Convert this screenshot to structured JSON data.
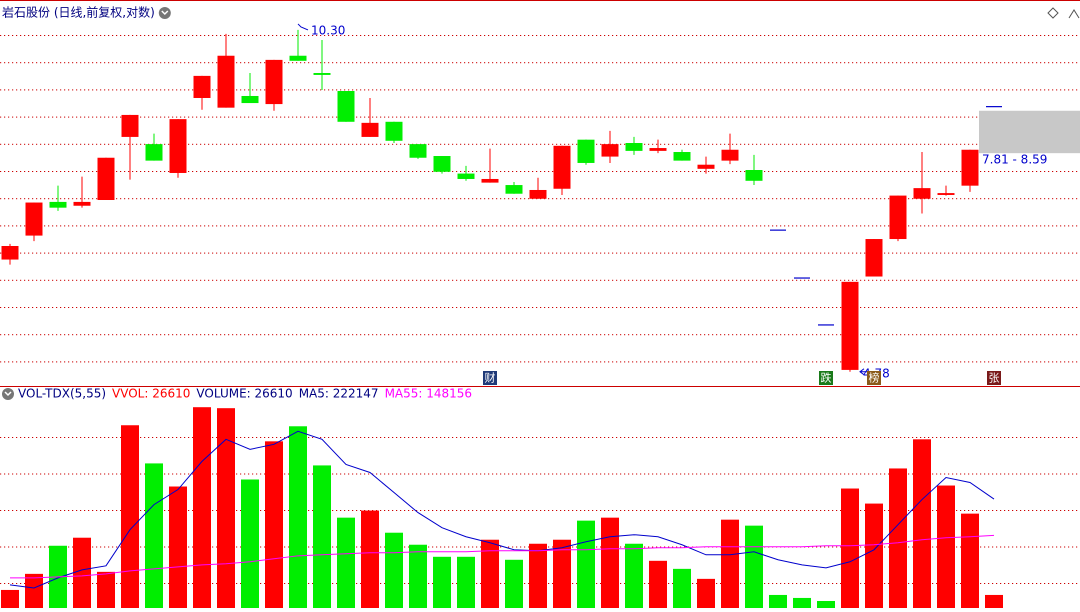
{
  "chart_data": [
    {
      "type": "candlestick",
      "title": "岩石股份 (日线,前复权,对数)",
      "scale": "log",
      "ylim": [
        4.64,
        10.82
      ],
      "up_color": "#ff0000",
      "down_color": "#00ee00",
      "flat_color": "#0000cc",
      "open": [
        6.15,
        6.49,
        7.0,
        6.94,
        7.03,
        8.1,
        7.97,
        7.47,
        8.84,
        8.65,
        8.88,
        8.72,
        9.72,
        9.35,
        8.98,
        8.1,
        8.38,
        7.97,
        7.76,
        7.46,
        7.31,
        7.27,
        7.05,
        7.21,
        8.05,
        7.75,
        7.99,
        7.85,
        7.83,
        7.54,
        7.68,
        7.52,
        6.57,
        5.9,
        5.31,
        4.8,
        5.92,
        6.44,
        7.05,
        7.11,
        7.26,
        8.67
      ],
      "high": [
        6.37,
        6.99,
        7.26,
        7.41,
        7.73,
        8.51,
        8.16,
        8.43,
        9.29,
        10.21,
        9.35,
        9.63,
        10.3,
        10.07,
        8.98,
        8.84,
        8.38,
        7.97,
        7.76,
        7.59,
        7.89,
        7.32,
        7.39,
        7.94,
        8.05,
        8.21,
        8.1,
        8.05,
        7.87,
        7.75,
        8.16,
        7.78,
        6.57,
        5.9,
        5.31,
        5.85,
        6.44,
        7.1,
        7.83,
        7.26,
        7.87,
        8.67
      ],
      "low": [
        6.08,
        6.41,
        6.86,
        6.91,
        7.03,
        7.36,
        7.68,
        7.39,
        8.61,
        8.65,
        8.74,
        8.59,
        9.61,
        9.0,
        8.38,
        8.1,
        7.99,
        7.71,
        7.46,
        7.34,
        7.31,
        7.13,
        7.05,
        7.11,
        7.61,
        7.64,
        7.78,
        7.81,
        7.68,
        7.46,
        7.62,
        7.27,
        6.57,
        5.9,
        5.31,
        4.78,
        5.92,
        6.41,
        6.82,
        7.1,
        7.16,
        8.67
      ],
      "close": [
        6.34,
        6.99,
        6.91,
        7.0,
        7.73,
        8.51,
        7.68,
        8.43,
        9.29,
        9.72,
        8.74,
        9.63,
        9.61,
        9.31,
        8.38,
        8.36,
        8.03,
        7.73,
        7.49,
        7.37,
        7.37,
        7.13,
        7.19,
        7.94,
        7.64,
        7.97,
        7.85,
        7.9,
        7.68,
        7.61,
        7.87,
        7.34,
        6.57,
        5.9,
        5.31,
        5.85,
        6.44,
        7.1,
        7.22,
        7.14,
        7.87,
        8.67
      ],
      "high_label": "10.30",
      "low_label": "4.78",
      "range_box": {
        "label": "7.81 - 8.59",
        "low": 7.81,
        "high": 8.59,
        "color": "#c8c8c8"
      },
      "markers": [
        null,
        null,
        null,
        null,
        null,
        null,
        null,
        null,
        null,
        null,
        null,
        null,
        null,
        null,
        null,
        null,
        null,
        null,
        null,
        null,
        {
          "text": "财",
          "color": "#203a78"
        },
        null,
        null,
        null,
        null,
        null,
        null,
        null,
        null,
        null,
        null,
        null,
        null,
        null,
        {
          "text": "跌",
          "color": "#1a7a1a"
        },
        null,
        {
          "text": "榜",
          "color": "#8a5a1a"
        },
        null,
        null,
        null,
        null,
        {
          "text": "张",
          "color": "#7a1a1a"
        }
      ]
    },
    {
      "type": "bar",
      "title": "VOL-TDX(5,55)",
      "ylim": [
        0,
        420000
      ],
      "legend": [
        {
          "text": "VVOL: 26610",
          "color": "#ff0000"
        },
        {
          "text": "VOLUME: 26610",
          "color": "#000080"
        },
        {
          "text": "MA5: 222147",
          "color": "#000080"
        },
        {
          "text": "MA55: 148156",
          "color": "#ff00ff"
        }
      ],
      "values": [
        36800,
        69600,
        126900,
        143300,
        73700,
        372600,
        294800,
        247700,
        409400,
        407400,
        262000,
        339800,
        370500,
        290700,
        184200,
        198600,
        153500,
        129000,
        104400,
        104400,
        139200,
        98300,
        131000,
        139200,
        178100,
        184200,
        131000,
        96200,
        79800,
        59400,
        180100,
        167900,
        26600,
        20500,
        14300,
        243600,
        212900,
        284500,
        343900,
        249700,
        192400,
        26610
      ],
      "series": [
        {
          "color": "#0000cc",
          "values": [
            47100,
            40900,
            61400,
            77800,
            86000,
            159700,
            210800,
            241500,
            298900,
            343900,
            323400,
            333700,
            360300,
            343900,
            292700,
            276300,
            235400,
            194500,
            163800,
            145300,
            133100,
            118700,
            116700,
            122800,
            135100,
            145300,
            149400,
            145300,
            129000,
            108500,
            108500,
            114600,
            98300,
            88000,
            81900,
            94200,
            118700,
            169900,
            221100,
            266100,
            255900,
            222147
          ]
        },
        {
          "color": "#ff00ff",
          "values": [
            61400,
            61400,
            63500,
            65500,
            69600,
            75700,
            79800,
            83900,
            88000,
            90100,
            94200,
            100300,
            106400,
            108500,
            110500,
            112600,
            112600,
            114600,
            114600,
            114600,
            116700,
            116700,
            116700,
            118700,
            118700,
            120800,
            120800,
            122800,
            122800,
            124900,
            124900,
            124900,
            124900,
            124900,
            126900,
            126900,
            129000,
            133100,
            139200,
            143300,
            145300,
            148156
          ]
        }
      ]
    }
  ]
}
